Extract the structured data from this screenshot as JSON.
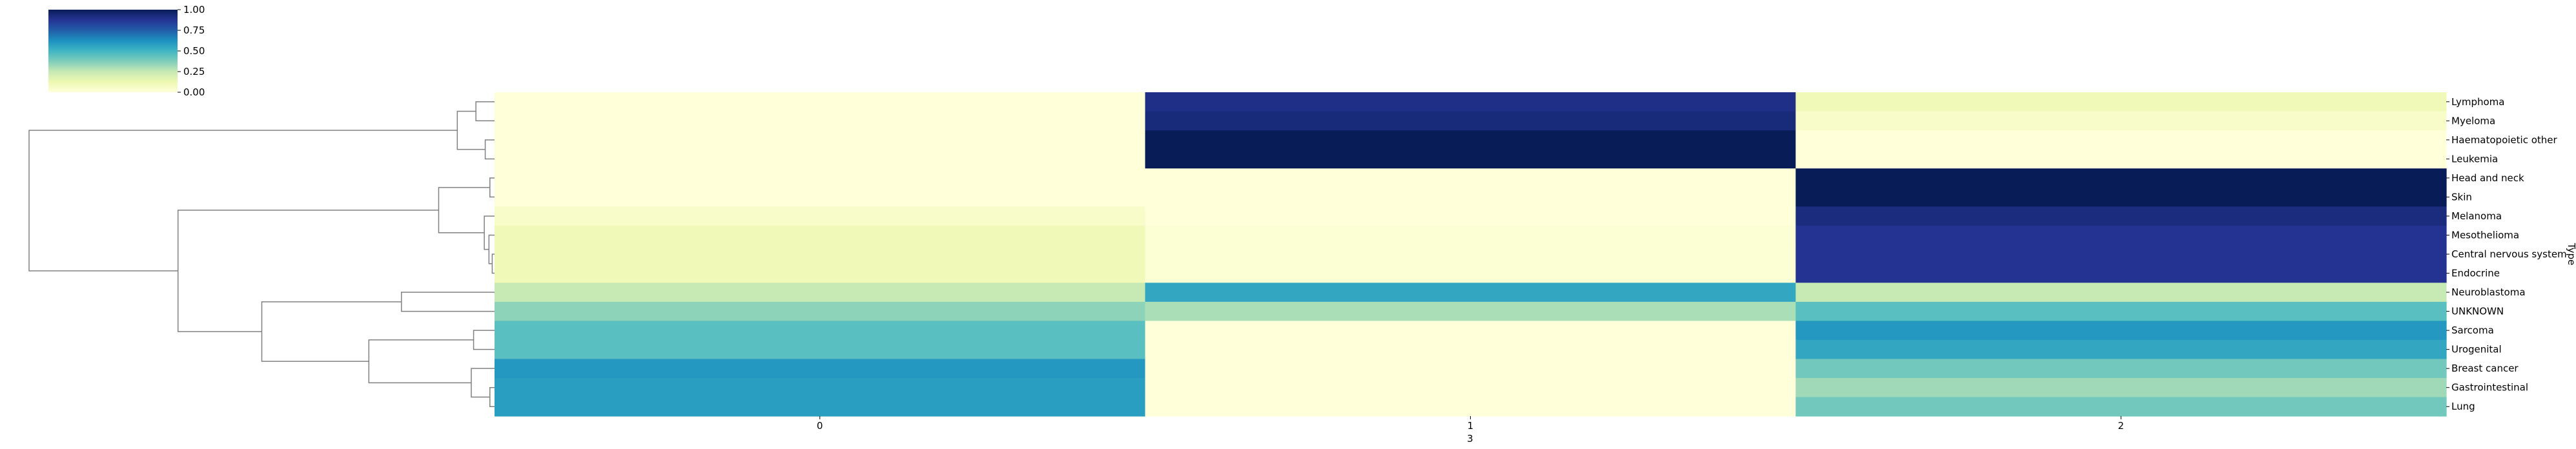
{
  "chart_data": {
    "type": "heatmap",
    "title": "",
    "xlabel": "3",
    "ylabel": "Type",
    "x_categories": [
      "0",
      "1",
      "2"
    ],
    "y_categories": [
      "Lymphoma",
      "Myeloma",
      "Haematopoietic other",
      "Leukemia",
      "Head and neck",
      "Skin",
      "Melanoma",
      "Mesothelioma",
      "Central nervous system",
      "Endocrine",
      "Neuroblastoma",
      "UNKNOWN",
      "Sarcoma",
      "Urogenital",
      "Breast cancer",
      "Gastrointestinal",
      "Lung"
    ],
    "values": [
      [
        0.0,
        0.9,
        0.1
      ],
      [
        0.0,
        0.93,
        0.05
      ],
      [
        0.0,
        1.0,
        0.0
      ],
      [
        0.0,
        1.0,
        0.0
      ],
      [
        0.0,
        0.0,
        1.0
      ],
      [
        0.0,
        0.0,
        1.0
      ],
      [
        0.05,
        0.0,
        0.92
      ],
      [
        0.1,
        0.02,
        0.88
      ],
      [
        0.1,
        0.02,
        0.88
      ],
      [
        0.1,
        0.02,
        0.88
      ],
      [
        0.25,
        0.55,
        0.25
      ],
      [
        0.35,
        0.3,
        0.45
      ],
      [
        0.45,
        0.0,
        0.6
      ],
      [
        0.45,
        0.0,
        0.55
      ],
      [
        0.6,
        0.0,
        0.4
      ],
      [
        0.58,
        0.0,
        0.32
      ],
      [
        0.58,
        0.0,
        0.4
      ]
    ],
    "colormap": "YlGnBu",
    "colorbar": {
      "range": [
        0,
        1
      ],
      "ticks": [
        "0.00",
        "0.25",
        "0.50",
        "0.75",
        "1.00"
      ],
      "placement": "top-left"
    },
    "dendrogram": {
      "side": "left",
      "color": "#808080",
      "links": [
        {
          "a": 0,
          "b": 1,
          "h": 0.04
        },
        {
          "a": 2,
          "b": 3,
          "h": 0.02
        },
        {
          "a": "L0",
          "b": "L1",
          "h": 0.08
        },
        {
          "a": 4,
          "b": 5,
          "h": 0.01
        },
        {
          "a": 8,
          "b": 9,
          "h": 0.005
        },
        {
          "a": 7,
          "b": "L4",
          "h": 0.012
        },
        {
          "a": 6,
          "b": "L5",
          "h": 0.022
        },
        {
          "a": "L3",
          "b": "L6",
          "h": 0.12
        },
        {
          "a": 10,
          "b": 11,
          "h": 0.2
        },
        {
          "a": 15,
          "b": 16,
          "h": 0.01
        },
        {
          "a": 14,
          "b": "L9",
          "h": 0.05
        },
        {
          "a": 12,
          "b": 13,
          "h": 0.045
        },
        {
          "a": "L11",
          "b": "L10",
          "h": 0.27
        },
        {
          "a": "L8",
          "b": "L12",
          "h": 0.5
        },
        {
          "a": "L7",
          "b": "L13",
          "h": 0.68
        },
        {
          "a": "L2",
          "b": "L14",
          "h": 1.0
        }
      ]
    }
  }
}
